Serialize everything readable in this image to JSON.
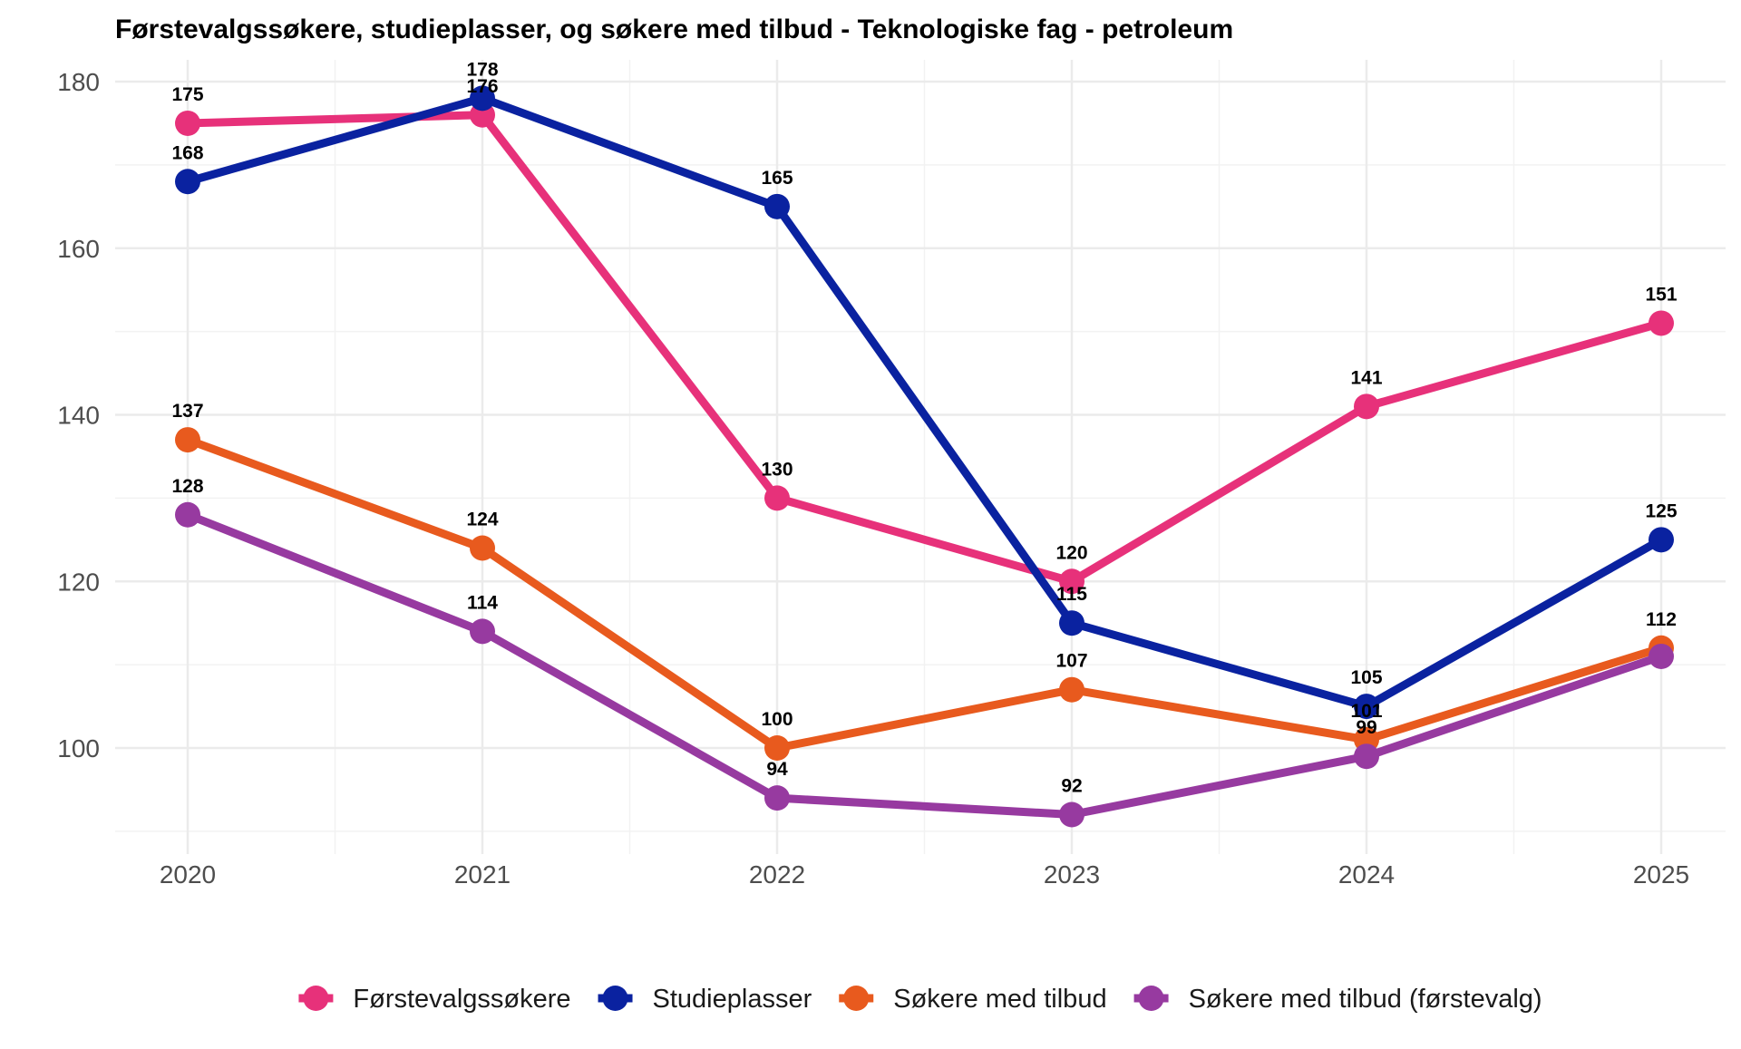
{
  "chart_data": {
    "type": "line",
    "title": "Førstevalgssøkere, studieplasser, og søkere med tilbud - Teknologiske fag - petroleum",
    "xlabel": "",
    "ylabel": "",
    "x": [
      "2020",
      "2021",
      "2022",
      "2023",
      "2024",
      "2025"
    ],
    "y_ticks": [
      100,
      120,
      140,
      160,
      180
    ],
    "ylim": [
      88,
      182
    ],
    "grid": true,
    "legend_position": "bottom",
    "series": [
      {
        "name": "Førstevalgssøkere",
        "color": "#E7317A",
        "values": [
          175,
          176,
          130,
          120,
          141,
          151
        ],
        "labels": [
          "175",
          "176",
          "130",
          "120",
          "141",
          "151"
        ]
      },
      {
        "name": "Studieplasser",
        "color": "#0A22A0",
        "values": [
          168,
          178,
          165,
          115,
          105,
          125
        ],
        "labels": [
          "168",
          "178",
          "165",
          "115",
          "105",
          "125"
        ]
      },
      {
        "name": "Søkere med tilbud",
        "color": "#E85A1E",
        "values": [
          137,
          124,
          100,
          107,
          101,
          112
        ],
        "labels": [
          "137",
          "124",
          "100",
          "107",
          "101",
          "112"
        ]
      },
      {
        "name": "Søkere med tilbud (førstevalg)",
        "color": "#973AA0",
        "values": [
          128,
          114,
          94,
          92,
          99,
          111
        ],
        "labels": [
          "128",
          "114",
          "94",
          "92",
          "99",
          ""
        ]
      }
    ]
  }
}
